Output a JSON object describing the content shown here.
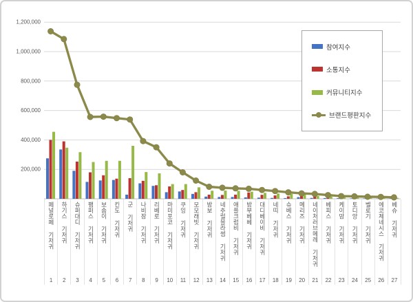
{
  "chart_data": {
    "type": "bar",
    "subtype": "grouped-bars-with-line-overlay",
    "title": "",
    "xlabel": "",
    "ylabel": "",
    "categories": [
      "페널로페 기저귀",
      "하기스 기저귀",
      "슈퍼대디 기저귀",
      "팸퍼스 기저귀",
      "보솜이 기저귀",
      "킨도 기저귀",
      "군 기저귀",
      "나비잠 기저귀",
      "리베로 기저귀",
      "마미포코 기저귀",
      "쿠잉 기저귀",
      "모모래빗 기저귀",
      "밤보 기저귀",
      "네추럴블라썸 기저귀",
      "애플크럼비 기저귀",
      "밤부베베 기저귀",
      "대디베이비 기저귀",
      "네띠 기저귀",
      "슈베스 기저귀",
      "메리즈 기저귀",
      "네이처러브메레 기저귀",
      "베피스 기저귀",
      "케이맘 기저귀",
      "토디앙 기저귀",
      "벨로기 기저귀",
      "에코제네시스 기저귀",
      "베슈 기저귀"
    ],
    "ranks": [
      "1",
      "2",
      "3",
      "4",
      "5",
      "6",
      "7",
      "8",
      "9",
      "10",
      "11",
      "12",
      "13",
      "14",
      "15",
      "16",
      "17",
      "18",
      "19",
      "20",
      "21",
      "22",
      "23",
      "24",
      "25",
      "26",
      "27"
    ],
    "y_axis": {
      "min": 0,
      "max": 1200000,
      "grid": true,
      "tick_labels": [
        "1,200,000",
        "1,000,000",
        "800,000",
        "600,000",
        "400,000",
        "200,000"
      ],
      "tick_values": [
        1200000,
        1000000,
        800000,
        600000,
        400000,
        200000
      ]
    },
    "legend": {
      "position": "top-right"
    },
    "series": [
      {
        "id": "participation-index",
        "name": "참여지수",
        "type": "bar",
        "color": "#4472C4",
        "values": [
          275000,
          335000,
          190000,
          115000,
          125000,
          128000,
          28000,
          105000,
          88000,
          45000,
          50000,
          33000,
          15000,
          12000,
          12000,
          10000,
          8000,
          6000,
          5000,
          11000,
          6000,
          5000,
          4000,
          3000,
          3000,
          2000,
          2000
        ]
      },
      {
        "id": "communication-index",
        "name": "소통지수",
        "type": "bar",
        "color": "#BB342F",
        "values": [
          400000,
          390000,
          253000,
          180000,
          160000,
          137000,
          140000,
          122000,
          92000,
          84000,
          60000,
          45000,
          28000,
          26000,
          28000,
          43000,
          27000,
          23000,
          17000,
          23000,
          28000,
          17000,
          8000,
          7000,
          6000,
          5000,
          4000
        ]
      },
      {
        "id": "community-index",
        "name": "커뮤니티지수",
        "type": "bar",
        "color": "#97B948",
        "values": [
          455000,
          347000,
          317000,
          250000,
          258000,
          258000,
          360000,
          182000,
          173000,
          100000,
          100000,
          78000,
          55000,
          56000,
          54000,
          48000,
          40000,
          36000,
          33000,
          28000,
          20000,
          15000,
          12000,
          10000,
          9000,
          8000,
          7000
        ]
      },
      {
        "id": "brand-reputation-index",
        "name": "브랜드평판지수",
        "type": "line",
        "color": "#8C8A4B",
        "values": [
          1138000,
          1085000,
          775000,
          556000,
          558000,
          548000,
          539000,
          392000,
          350000,
          240000,
          180000,
          124000,
          82000,
          75000,
          71000,
          68000,
          60000,
          53000,
          44000,
          37000,
          33000,
          25000,
          18000,
          17000,
          14000,
          13000,
          10000
        ]
      }
    ]
  }
}
